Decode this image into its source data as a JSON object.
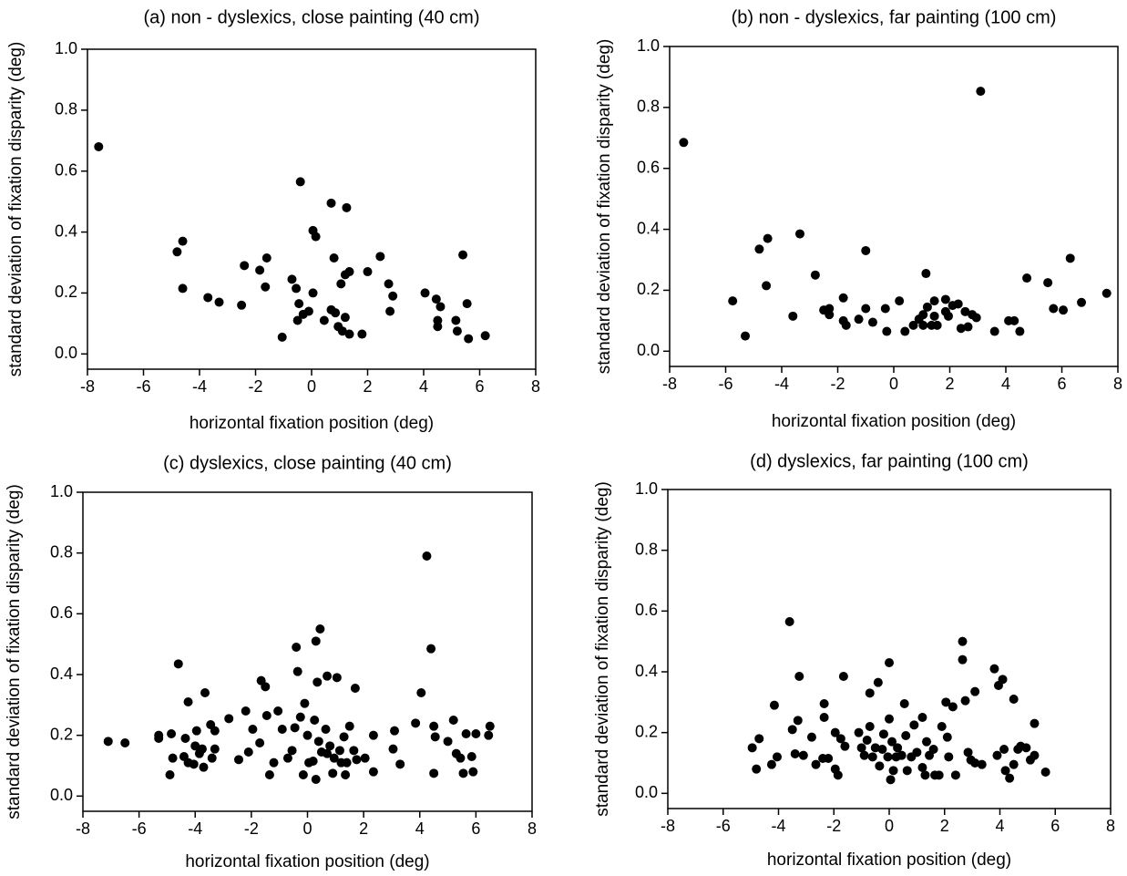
{
  "chart_data": [
    {
      "type": "scatter",
      "title": "(a) non - dyslexics, close painting (40 cm)",
      "x_label": "horizontal fixation position (deg)",
      "y_label": "standard deviation of fixation disparity (deg)",
      "color": "#000000",
      "xlim": [
        -8,
        8
      ],
      "ylim": [
        -0.05,
        1.0
      ],
      "xticks": [
        -8,
        -6,
        -4,
        -2,
        0,
        2,
        4,
        6,
        8
      ],
      "yticks": [
        {
          "value": 0,
          "label": "0.0"
        },
        0.2,
        0.4,
        0.6,
        0.8,
        {
          "value": 1,
          "label": "1.0"
        }
      ],
      "x": [
        -7.6,
        -4.8,
        -4.6,
        -4.6,
        -3.7,
        -3.3,
        -2.5,
        -2.4,
        -1.85,
        -1.6,
        -1.65,
        -1.05,
        -0.7,
        -0.55,
        -0.4,
        -0.45,
        -0.5,
        -0.3,
        -0.1,
        0.05,
        0.05,
        0.15,
        0.45,
        0.7,
        0.7,
        0.8,
        0.85,
        0.95,
        1.05,
        1.1,
        1.2,
        1.25,
        1.2,
        1.35,
        1.35,
        1.8,
        2.0,
        2.45,
        2.75,
        2.8,
        2.9,
        4.05,
        4.45,
        4.6,
        4.5,
        4.5,
        5.15,
        5.2,
        5.4,
        5.55,
        5.6,
        6.2
      ],
      "y": [
        0.68,
        0.335,
        0.37,
        0.215,
        0.185,
        0.17,
        0.16,
        0.29,
        0.275,
        0.315,
        0.22,
        0.055,
        0.245,
        0.215,
        0.565,
        0.165,
        0.11,
        0.13,
        0.14,
        0.2,
        0.405,
        0.385,
        0.11,
        0.495,
        0.145,
        0.315,
        0.135,
        0.09,
        0.23,
        0.075,
        0.26,
        0.48,
        0.12,
        0.27,
        0.065,
        0.065,
        0.27,
        0.32,
        0.23,
        0.14,
        0.19,
        0.2,
        0.18,
        0.155,
        0.11,
        0.09,
        0.11,
        0.075,
        0.325,
        0.165,
        0.05,
        0.06
      ]
    },
    {
      "type": "scatter",
      "title": "(b) non - dyslexics, far painting (100 cm)",
      "x_label": "horizontal fixation position (deg)",
      "y_label": "standard deviation of fixation disparity (deg)",
      "color": "#000000",
      "xlim": [
        -8,
        8
      ],
      "ylim": [
        -0.05,
        1.0
      ],
      "xticks": [
        -8,
        -6,
        -4,
        -2,
        0,
        2,
        4,
        6,
        8
      ],
      "yticks": [
        {
          "value": 0,
          "label": "0.0"
        },
        0.2,
        0.4,
        0.6,
        0.8,
        {
          "value": 1,
          "label": "1.0"
        }
      ],
      "x": [
        -7.5,
        3.1,
        -5.75,
        -5.3,
        -4.8,
        -4.5,
        -4.55,
        -3.6,
        -3.35,
        -2.8,
        -2.5,
        -2.3,
        -2.3,
        -1.8,
        -1.8,
        -1.7,
        -1.25,
        -1.0,
        -1.0,
        -0.75,
        -0.3,
        -0.25,
        0.2,
        0.4,
        0.7,
        0.9,
        1.05,
        1.15,
        1.05,
        1.2,
        1.35,
        1.45,
        1.45,
        1.55,
        1.85,
        1.85,
        1.95,
        2.1,
        2.3,
        2.4,
        2.55,
        2.65,
        2.8,
        2.95,
        3.6,
        4.1,
        4.3,
        4.5,
        4.75,
        5.5,
        5.7,
        6.05,
        6.3,
        6.7,
        7.6
      ],
      "y": [
        0.685,
        0.853,
        0.165,
        0.05,
        0.335,
        0.37,
        0.215,
        0.115,
        0.385,
        0.25,
        0.135,
        0.12,
        0.14,
        0.175,
        0.1,
        0.085,
        0.105,
        0.14,
        0.33,
        0.095,
        0.14,
        0.065,
        0.165,
        0.065,
        0.085,
        0.105,
        0.12,
        0.255,
        0.085,
        0.145,
        0.085,
        0.165,
        0.115,
        0.085,
        0.17,
        0.13,
        0.115,
        0.15,
        0.155,
        0.075,
        0.13,
        0.08,
        0.12,
        0.11,
        0.065,
        0.1,
        0.1,
        0.065,
        0.24,
        0.225,
        0.14,
        0.135,
        0.305,
        0.16,
        0.19
      ]
    },
    {
      "type": "scatter",
      "title": "(c) dyslexics, close painting (40 cm)",
      "x_label": "horizontal fixation position (deg)",
      "y_label": "standard deviation of fixation disparity (deg)",
      "color": "#000000",
      "xlim": [
        -8,
        8
      ],
      "ylim": [
        -0.05,
        1.0
      ],
      "xticks": [
        -8,
        -6,
        -4,
        -2,
        0,
        2,
        4,
        6,
        8
      ],
      "yticks": [
        {
          "value": 0,
          "label": "0.0"
        },
        0.2,
        0.4,
        0.6,
        0.8,
        {
          "value": 1,
          "label": "1.0"
        }
      ],
      "x": [
        -7.1,
        -6.5,
        -5.3,
        -5.3,
        -4.85,
        -4.9,
        -4.8,
        -4.6,
        -4.4,
        -4.35,
        -4.25,
        -4.25,
        -4.05,
        -4.0,
        -3.95,
        -3.85,
        -3.75,
        -3.65,
        -3.7,
        -3.45,
        -3.4,
        -3.3,
        -3.3,
        -2.8,
        -2.45,
        -2.2,
        -2.1,
        -1.95,
        -1.7,
        -1.65,
        -1.5,
        -1.45,
        -1.35,
        -1.2,
        -1.05,
        -0.9,
        -0.7,
        -0.55,
        -0.45,
        -0.4,
        -0.35,
        -0.25,
        -0.15,
        -0.1,
        0,
        0.05,
        0.2,
        0.25,
        0.3,
        0.3,
        0.45,
        0.35,
        0.4,
        0.5,
        0.65,
        0.7,
        0.7,
        0.8,
        0.9,
        0.95,
        1.05,
        1.15,
        1.2,
        1.3,
        1.35,
        1.4,
        1.5,
        1.65,
        1.7,
        1.75,
        2.05,
        2.35,
        2.35,
        3.05,
        3.1,
        3.3,
        3.85,
        4.05,
        4.25,
        4.4,
        4.5,
        4.5,
        4.55,
        5.0,
        5.2,
        5.3,
        5.45,
        5.55,
        5.65,
        5.85,
        5.9,
        6.0,
        6.45,
        6.5
      ],
      "y": [
        0.18,
        0.175,
        0.2,
        0.19,
        0.205,
        0.07,
        0.125,
        0.435,
        0.13,
        0.19,
        0.31,
        0.11,
        0.105,
        0.165,
        0.215,
        0.14,
        0.155,
        0.34,
        0.095,
        0.235,
        0.125,
        0.155,
        0.215,
        0.255,
        0.12,
        0.28,
        0.145,
        0.22,
        0.175,
        0.38,
        0.36,
        0.265,
        0.07,
        0.11,
        0.28,
        0.22,
        0.125,
        0.15,
        0.225,
        0.49,
        0.41,
        0.26,
        0.07,
        0.305,
        0.2,
        0.11,
        0.115,
        0.25,
        0.055,
        0.51,
        0.55,
        0.375,
        0.18,
        0.145,
        0.22,
        0.395,
        0.14,
        0.165,
        0.075,
        0.125,
        0.39,
        0.15,
        0.11,
        0.195,
        0.07,
        0.11,
        0.23,
        0.15,
        0.355,
        0.12,
        0.125,
        0.08,
        0.2,
        0.155,
        0.215,
        0.105,
        0.24,
        0.34,
        0.79,
        0.485,
        0.23,
        0.075,
        0.195,
        0.18,
        0.25,
        0.14,
        0.125,
        0.075,
        0.205,
        0.13,
        0.08,
        0.205,
        0.2,
        0.23
      ]
    },
    {
      "type": "scatter",
      "title": "(d) dyslexics, far painting (100 cm)",
      "x_label": "horizontal fixation position (deg)",
      "y_label": "standard deviation of fixation disparity (deg)",
      "color": "#000000",
      "xlim": [
        -8,
        8
      ],
      "ylim": [
        -0.05,
        1.0
      ],
      "xticks": [
        -8,
        -6,
        -4,
        -2,
        0,
        2,
        4,
        6,
        8
      ],
      "yticks": [
        {
          "value": 0,
          "label": "0.0"
        },
        0.2,
        0.4,
        0.6,
        0.8,
        {
          "value": 1,
          "label": "1.0"
        }
      ],
      "x": [
        -4.95,
        -4.8,
        -4.7,
        -4.25,
        -4.15,
        -4.05,
        -3.6,
        -3.5,
        -3.4,
        -3.25,
        -3.3,
        -3.1,
        -2.8,
        -2.65,
        -2.4,
        -2.35,
        -2.35,
        -2.2,
        -1.95,
        -1.95,
        -1.85,
        -1.75,
        -1.65,
        -1.6,
        -1.1,
        -1.0,
        -0.9,
        -0.8,
        -0.7,
        -0.7,
        -0.6,
        -0.5,
        -0.4,
        -0.35,
        -0.25,
        -0.2,
        -0.05,
        0,
        0,
        0.05,
        0.1,
        0.15,
        0.25,
        0.3,
        0.45,
        0.55,
        0.6,
        0.65,
        0.8,
        0.9,
        1.0,
        1.2,
        1.2,
        1.3,
        1.35,
        1.45,
        1.6,
        1.65,
        1.8,
        1.9,
        2.05,
        2.1,
        2.15,
        2.3,
        2.4,
        2.65,
        2.65,
        2.75,
        2.85,
        2.95,
        3.1,
        3.1,
        3.35,
        3.8,
        3.9,
        3.95,
        4.1,
        4.15,
        4.2,
        4.35,
        4.5,
        4.5,
        4.65,
        4.75,
        4.95,
        5.1,
        5.25,
        5.25,
        5.65
      ],
      "y": [
        0.15,
        0.08,
        0.18,
        0.095,
        0.29,
        0.12,
        0.565,
        0.21,
        0.13,
        0.385,
        0.24,
        0.125,
        0.185,
        0.095,
        0.115,
        0.295,
        0.25,
        0.115,
        0.2,
        0.08,
        0.06,
        0.18,
        0.385,
        0.155,
        0.2,
        0.15,
        0.125,
        0.175,
        0.22,
        0.33,
        0.12,
        0.15,
        0.365,
        0.09,
        0.145,
        0.195,
        0.12,
        0.43,
        0.245,
        0.045,
        0.17,
        0.075,
        0.12,
        0.15,
        0.125,
        0.295,
        0.19,
        0.075,
        0.12,
        0.225,
        0.135,
        0.25,
        0.085,
        0.06,
        0.17,
        0.125,
        0.145,
        0.06,
        0.06,
        0.22,
        0.3,
        0.185,
        0.12,
        0.285,
        0.06,
        0.5,
        0.44,
        0.305,
        0.135,
        0.11,
        0.335,
        0.1,
        0.095,
        0.41,
        0.125,
        0.355,
        0.375,
        0.145,
        0.075,
        0.05,
        0.31,
        0.095,
        0.145,
        0.155,
        0.15,
        0.11,
        0.23,
        0.125,
        0.07
      ]
    }
  ]
}
